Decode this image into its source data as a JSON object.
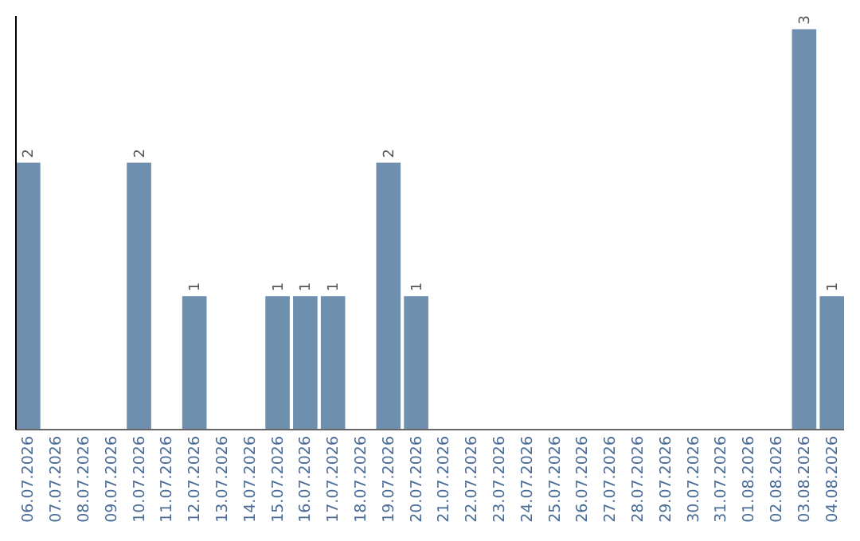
{
  "chart_data": {
    "type": "bar",
    "categories": [
      "06.07.2026",
      "07.07.2026",
      "08.07.2026",
      "09.07.2026",
      "10.07.2026",
      "11.07.2026",
      "12.07.2026",
      "13.07.2026",
      "14.07.2026",
      "15.07.2026",
      "16.07.2026",
      "17.07.2026",
      "18.07.2026",
      "19.07.2026",
      "20.07.2026",
      "21.07.2026",
      "22.07.2026",
      "23.07.2026",
      "24.07.2026",
      "25.07.2026",
      "26.07.2026",
      "27.07.2026",
      "28.07.2026",
      "29.07.2026",
      "30.07.2026",
      "31.07.2026",
      "01.08.2026",
      "02.08.2026",
      "03.08.2026",
      "04.08.2026"
    ],
    "values": [
      2,
      0,
      0,
      0,
      2,
      0,
      1,
      0,
      0,
      1,
      1,
      1,
      0,
      2,
      1,
      0,
      0,
      0,
      0,
      0,
      0,
      0,
      0,
      0,
      0,
      0,
      0,
      0,
      3,
      1
    ],
    "value_labels": [
      "2",
      null,
      null,
      null,
      "2",
      null,
      "1",
      null,
      null,
      "1",
      "1",
      "1",
      null,
      "2",
      "1",
      null,
      null,
      null,
      null,
      null,
      null,
      null,
      null,
      null,
      null,
      null,
      null,
      null,
      "3",
      "1"
    ],
    "color": "#6f8fae",
    "ylim": [
      0,
      3.1
    ],
    "tick_labels": "x",
    "grid": false
  }
}
